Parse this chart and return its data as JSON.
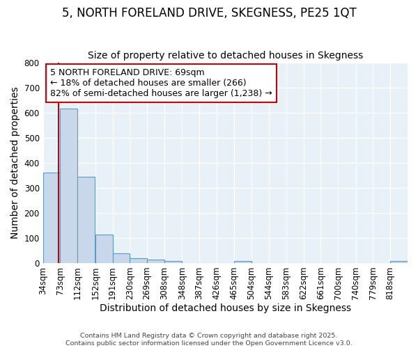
{
  "title": "5, NORTH FORELAND DRIVE, SKEGNESS, PE25 1QT",
  "subtitle": "Size of property relative to detached houses in Skegness",
  "xlabel": "Distribution of detached houses by size in Skegness",
  "ylabel": "Number of detached properties",
  "bin_labels": [
    "34sqm",
    "73sqm",
    "112sqm",
    "152sqm",
    "191sqm",
    "230sqm",
    "269sqm",
    "308sqm",
    "348sqm",
    "387sqm",
    "426sqm",
    "465sqm",
    "504sqm",
    "544sqm",
    "583sqm",
    "622sqm",
    "661sqm",
    "700sqm",
    "740sqm",
    "779sqm",
    "818sqm"
  ],
  "bar_heights": [
    360,
    615,
    345,
    115,
    40,
    18,
    15,
    8,
    0,
    0,
    0,
    8,
    0,
    0,
    0,
    0,
    0,
    0,
    0,
    0,
    8
  ],
  "bar_color": "#c8d8ea",
  "bar_edge_color": "#5b9ac4",
  "property_line_x": 69,
  "property_line_color": "#cc0000",
  "annotation_text": "5 NORTH FORELAND DRIVE: 69sqm\n← 18% of detached houses are smaller (266)\n82% of semi-detached houses are larger (1,238) →",
  "annotation_box_color": "#ffffff",
  "annotation_box_edge_color": "#cc0000",
  "ylim": [
    0,
    800
  ],
  "yticks": [
    0,
    100,
    200,
    300,
    400,
    500,
    600,
    700,
    800
  ],
  "footer_text": "Contains HM Land Registry data © Crown copyright and database right 2025.\nContains public sector information licensed under the Open Government Licence v3.0.",
  "plot_bg_color": "#e8f0f8",
  "fig_bg_color": "#ffffff",
  "grid_color": "#ffffff",
  "title_fontsize": 12,
  "subtitle_fontsize": 10,
  "axis_label_fontsize": 10,
  "tick_fontsize": 8.5,
  "annot_fontsize": 9,
  "bin_width": 39
}
